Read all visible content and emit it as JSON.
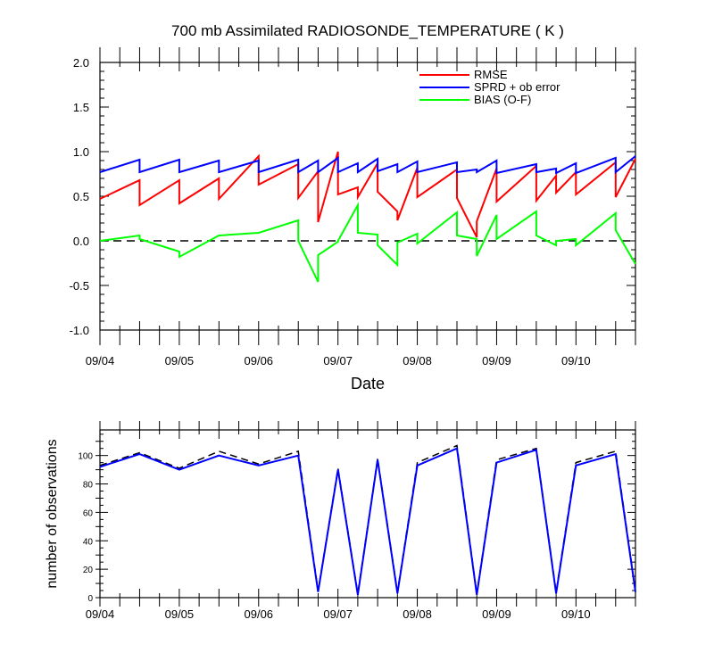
{
  "chart_data": [
    {
      "type": "line",
      "title": "700 mb Assimilated RADIOSONDE_TEMPERATURE ( K )",
      "xlabel": "Date",
      "ylabel": "",
      "x_ticks": [
        "09/04",
        "09/05",
        "09/06",
        "09/07",
        "09/08",
        "09/09",
        "09/10"
      ],
      "xlim": [
        0,
        6.75
      ],
      "ylim": [
        -1.0,
        2.0
      ],
      "y_ticks": [
        "-1.0",
        "-0.5",
        "0.0",
        "0.5",
        "1.0",
        "1.5",
        "2.0"
      ],
      "zero_line": "dashed",
      "legend_position": "top-right",
      "series": [
        {
          "name": "RMSE",
          "color": "#ff0000",
          "points": [
            [
              0,
              0.47
            ],
            [
              0.5,
              0.68
            ],
            [
              0.5,
              0.4
            ],
            [
              1.0,
              0.68
            ],
            [
              1.0,
              0.42
            ],
            [
              1.5,
              0.7
            ],
            [
              1.5,
              0.47
            ],
            [
              2.0,
              0.95
            ],
            [
              2.0,
              0.63
            ],
            [
              2.5,
              0.86
            ],
            [
              2.5,
              0.48
            ],
            [
              2.75,
              0.78
            ],
            [
              2.75,
              0.21
            ],
            [
              3.0,
              1.0
            ],
            [
              3.0,
              0.52
            ],
            [
              3.25,
              0.6
            ],
            [
              3.25,
              0.49
            ],
            [
              3.5,
              0.87
            ],
            [
              3.5,
              0.55
            ],
            [
              3.75,
              0.33
            ],
            [
              3.75,
              0.23
            ],
            [
              4.0,
              0.82
            ],
            [
              4.0,
              0.49
            ],
            [
              4.5,
              0.8
            ],
            [
              4.5,
              0.48
            ],
            [
              4.75,
              0.04
            ],
            [
              4.75,
              0.22
            ],
            [
              5.0,
              0.81
            ],
            [
              5.0,
              0.44
            ],
            [
              5.5,
              0.84
            ],
            [
              5.5,
              0.45
            ],
            [
              5.75,
              0.73
            ],
            [
              5.75,
              0.54
            ],
            [
              6.0,
              0.77
            ],
            [
              6.0,
              0.52
            ],
            [
              6.5,
              0.88
            ],
            [
              6.5,
              0.49
            ],
            [
              6.75,
              0.92
            ]
          ]
        },
        {
          "name": "SPRD + ob error",
          "color": "#0000ff",
          "points": [
            [
              0,
              0.77
            ],
            [
              0.5,
              0.91
            ],
            [
              0.5,
              0.77
            ],
            [
              1.0,
              0.91
            ],
            [
              1.0,
              0.77
            ],
            [
              1.5,
              0.9
            ],
            [
              1.5,
              0.77
            ],
            [
              2.0,
              0.9
            ],
            [
              2.0,
              0.77
            ],
            [
              2.5,
              0.91
            ],
            [
              2.5,
              0.77
            ],
            [
              2.75,
              0.9
            ],
            [
              2.75,
              0.77
            ],
            [
              3.0,
              0.93
            ],
            [
              3.0,
              0.77
            ],
            [
              3.25,
              0.87
            ],
            [
              3.25,
              0.77
            ],
            [
              3.5,
              0.92
            ],
            [
              3.5,
              0.78
            ],
            [
              3.75,
              0.86
            ],
            [
              3.75,
              0.77
            ],
            [
              4.0,
              0.89
            ],
            [
              4.0,
              0.77
            ],
            [
              4.5,
              0.88
            ],
            [
              4.5,
              0.77
            ],
            [
              4.75,
              0.8
            ],
            [
              4.75,
              0.77
            ],
            [
              5.0,
              0.9
            ],
            [
              5.0,
              0.76
            ],
            [
              5.5,
              0.86
            ],
            [
              5.5,
              0.77
            ],
            [
              5.75,
              0.81
            ],
            [
              5.75,
              0.76
            ],
            [
              6.0,
              0.87
            ],
            [
              6.0,
              0.76
            ],
            [
              6.5,
              0.93
            ],
            [
              6.5,
              0.77
            ],
            [
              6.75,
              0.95
            ]
          ]
        },
        {
          "name": "BIAS (O-F)",
          "color": "#00ff00",
          "points": [
            [
              0,
              0.0
            ],
            [
              0.5,
              0.06
            ],
            [
              0.5,
              0.02
            ],
            [
              1.0,
              -0.12
            ],
            [
              1.0,
              -0.18
            ],
            [
              1.5,
              0.06
            ],
            [
              2.0,
              0.09
            ],
            [
              2.5,
              0.23
            ],
            [
              2.5,
              0.0
            ],
            [
              2.75,
              -0.46
            ],
            [
              2.75,
              -0.16
            ],
            [
              3.0,
              -0.01
            ],
            [
              3.0,
              0.0
            ],
            [
              3.25,
              0.4
            ],
            [
              3.25,
              0.09
            ],
            [
              3.5,
              0.07
            ],
            [
              3.5,
              -0.05
            ],
            [
              3.75,
              -0.27
            ],
            [
              3.75,
              -0.02
            ],
            [
              4.0,
              0.08
            ],
            [
              4.0,
              -0.03
            ],
            [
              4.5,
              0.32
            ],
            [
              4.5,
              0.06
            ],
            [
              4.75,
              0.02
            ],
            [
              4.75,
              -0.17
            ],
            [
              5.0,
              0.29
            ],
            [
              5.0,
              0.02
            ],
            [
              5.5,
              0.33
            ],
            [
              5.5,
              0.06
            ],
            [
              5.75,
              -0.05
            ],
            [
              5.75,
              0.0
            ],
            [
              6.0,
              0.02
            ],
            [
              6.0,
              -0.05
            ],
            [
              6.5,
              0.31
            ],
            [
              6.5,
              0.12
            ],
            [
              6.75,
              -0.26
            ]
          ]
        }
      ]
    },
    {
      "type": "line",
      "title": "",
      "xlabel": "",
      "ylabel": "number of observations",
      "x_ticks": [
        "09/04",
        "09/05",
        "09/06",
        "09/07",
        "09/08",
        "09/09",
        "09/10"
      ],
      "xlim": [
        0,
        6.75
      ],
      "ylim": [
        0,
        118
      ],
      "y_ticks": [
        "0",
        "20",
        "40",
        "60",
        "80",
        "100"
      ],
      "series": [
        {
          "name": "",
          "color": "#000000",
          "dash": "dashed",
          "x": [
            0,
            0.5,
            1.0,
            1.5,
            2.0,
            2.5,
            2.75,
            3.0,
            3.25,
            3.5,
            3.75,
            4.0,
            4.5,
            4.75,
            5.0,
            5.5,
            5.75,
            6.0,
            6.5,
            6.75
          ],
          "values": [
            93,
            102,
            91,
            103,
            94,
            103,
            5,
            91,
            3,
            98,
            4,
            95,
            107,
            3,
            97,
            105,
            4,
            95,
            103,
            5
          ]
        },
        {
          "name": "",
          "color": "#0000ff",
          "dash": "solid",
          "x": [
            0,
            0.5,
            1.0,
            1.5,
            2.0,
            2.5,
            2.75,
            3.0,
            3.25,
            3.5,
            3.75,
            4.0,
            4.5,
            4.75,
            5.0,
            5.5,
            5.75,
            6.0,
            6.5,
            6.75
          ],
          "values": [
            92,
            101,
            90,
            100,
            93,
            100,
            4,
            90,
            2,
            97,
            3,
            93,
            105,
            2,
            95,
            104,
            3,
            93,
            101,
            4
          ]
        }
      ]
    }
  ]
}
